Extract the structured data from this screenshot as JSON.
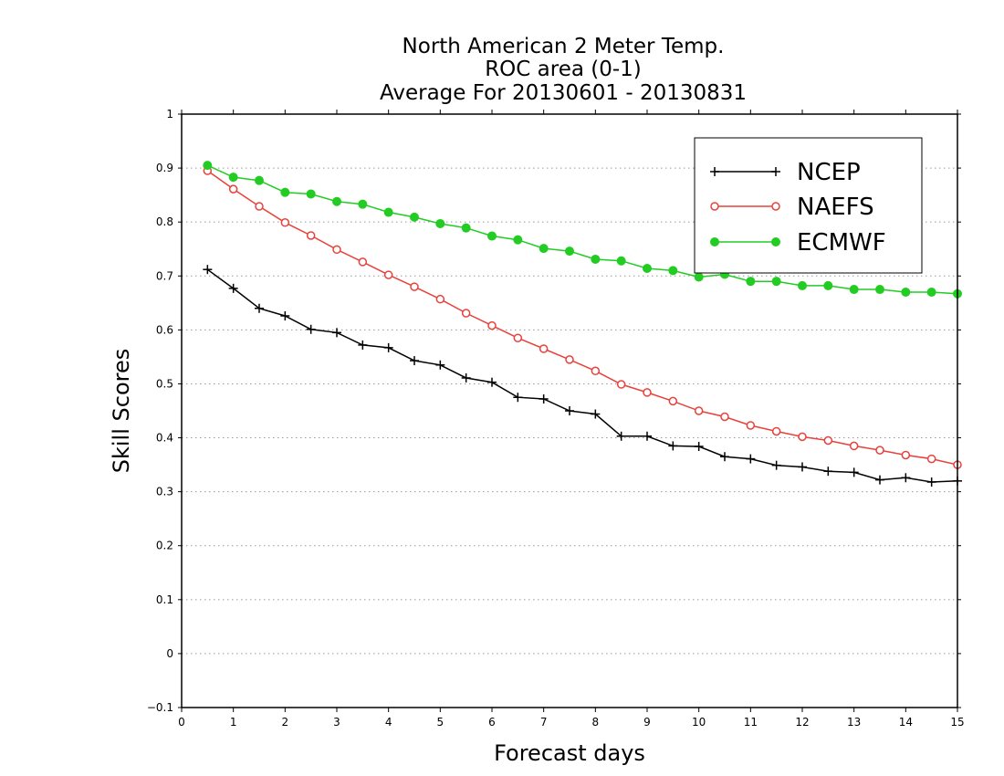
{
  "chart_data": {
    "type": "line",
    "title_lines": [
      "North American 2 Meter Temp.",
      "ROC area (0-1)",
      "Average For 20130601 - 20130831"
    ],
    "xlabel": "Forecast days",
    "ylabel": "Skill Scores",
    "xlim": [
      0,
      15
    ],
    "ylim": [
      -0.1,
      1
    ],
    "xticks": [
      0,
      1,
      2,
      3,
      4,
      5,
      6,
      7,
      8,
      9,
      10,
      11,
      12,
      13,
      14,
      15
    ],
    "yticks": [
      -0.1,
      0,
      0.1,
      0.2,
      0.3,
      0.4,
      0.5,
      0.6,
      0.7,
      0.8,
      0.9,
      1
    ],
    "ytick_labels": [
      "−0.1",
      "0",
      "0.1",
      "0.2",
      "0.3",
      "0.4",
      "0.5",
      "0.6",
      "0.7",
      "0.8",
      "0.9",
      "1"
    ],
    "grid": "horizontal dotted",
    "legend_position": "top-right",
    "x": [
      0.5,
      1,
      1.5,
      2,
      2.5,
      3,
      3.5,
      4,
      4.5,
      5,
      5.5,
      6,
      6.5,
      7,
      7.5,
      8,
      8.5,
      9,
      9.5,
      10,
      10.5,
      11,
      11.5,
      12,
      12.5,
      13,
      13.5,
      14,
      14.5,
      15
    ],
    "series": [
      {
        "name": "NCEP",
        "color": "#000000",
        "marker": "plus",
        "values": [
          0.712,
          0.677,
          0.64,
          0.626,
          0.601,
          0.595,
          0.572,
          0.567,
          0.543,
          0.535,
          0.511,
          0.503,
          0.475,
          0.472,
          0.45,
          0.444,
          0.403,
          0.403,
          0.385,
          0.384,
          0.365,
          0.361,
          0.349,
          0.346,
          0.338,
          0.336,
          0.322,
          0.326,
          0.318,
          0.32
        ]
      },
      {
        "name": "NAEFS",
        "color": "#e8413c",
        "marker": "open-circle",
        "values": [
          0.895,
          0.861,
          0.829,
          0.799,
          0.775,
          0.749,
          0.726,
          0.702,
          0.68,
          0.657,
          0.631,
          0.608,
          0.585,
          0.565,
          0.545,
          0.524,
          0.499,
          0.484,
          0.468,
          0.45,
          0.439,
          0.423,
          0.412,
          0.402,
          0.395,
          0.385,
          0.377,
          0.368,
          0.361,
          0.35
        ]
      },
      {
        "name": "ECMWF",
        "color": "#22cc22",
        "marker": "filled-circle",
        "values": [
          0.905,
          0.883,
          0.877,
          0.855,
          0.852,
          0.838,
          0.833,
          0.818,
          0.809,
          0.797,
          0.789,
          0.774,
          0.767,
          0.751,
          0.746,
          0.731,
          0.728,
          0.714,
          0.71,
          0.698,
          0.703,
          0.69,
          0.69,
          0.682,
          0.682,
          0.675,
          0.675,
          0.67,
          0.67,
          0.667
        ]
      }
    ]
  }
}
